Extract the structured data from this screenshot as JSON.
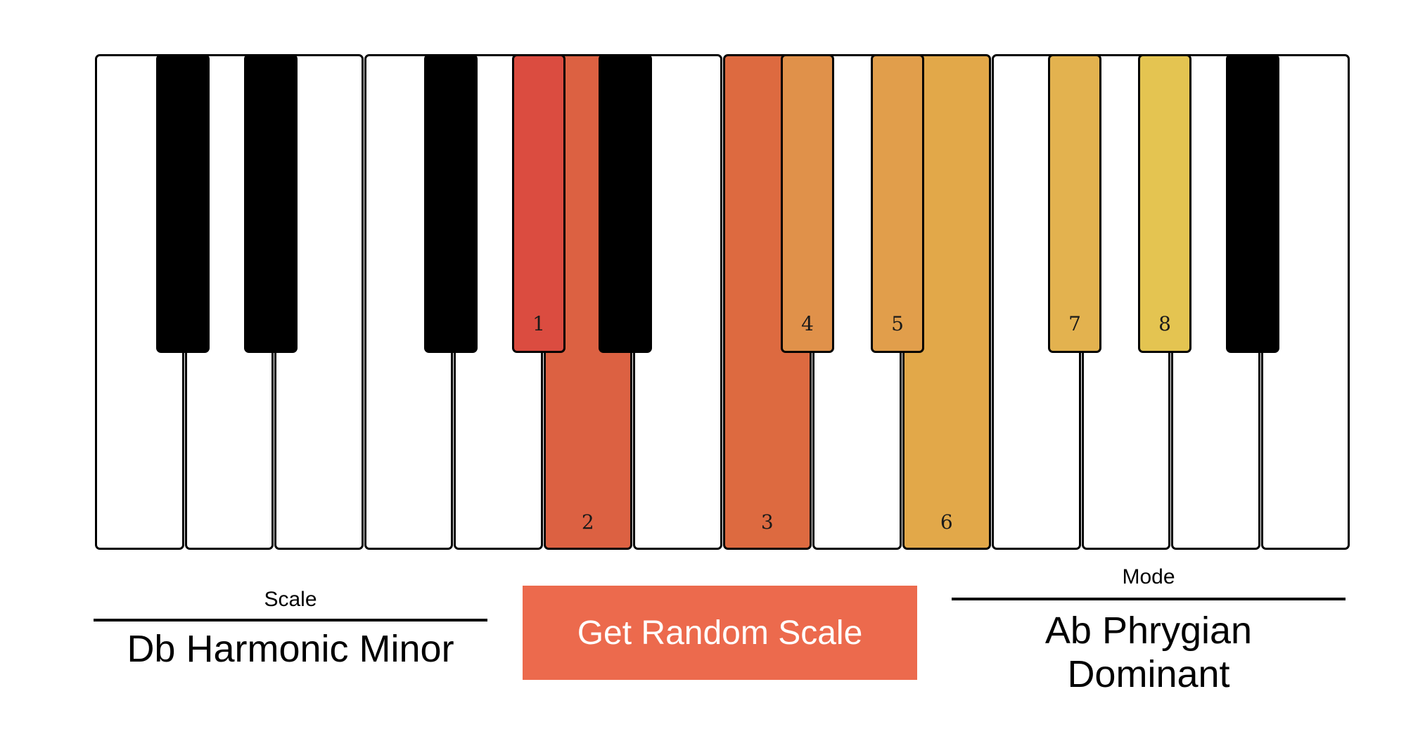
{
  "keyboard": {
    "white_keys": [
      {
        "label": "",
        "color": null
      },
      {
        "label": "",
        "color": null
      },
      {
        "label": "",
        "color": null
      },
      {
        "label": "",
        "color": null
      },
      {
        "label": "",
        "color": null
      },
      {
        "label": "2",
        "color": "#dc6142"
      },
      {
        "label": "",
        "color": null
      },
      {
        "label": "3",
        "color": "#dd6a40"
      },
      {
        "label": "",
        "color": null
      },
      {
        "label": "6",
        "color": "#e2a849"
      },
      {
        "label": "",
        "color": null
      },
      {
        "label": "",
        "color": null
      },
      {
        "label": "",
        "color": null
      },
      {
        "label": "",
        "color": null
      }
    ],
    "black_keys": [
      {
        "label": "",
        "color": null
      },
      {
        "label": "",
        "color": null
      },
      {
        "label": "",
        "color": null
      },
      {
        "label": "1",
        "color": "#db4c40"
      },
      {
        "label": "",
        "color": null
      },
      {
        "label": "4",
        "color": "#e0914a"
      },
      {
        "label": "5",
        "color": "#e19e4b"
      },
      {
        "label": "7",
        "color": "#e3b24f"
      },
      {
        "label": "8",
        "color": "#e4c451"
      },
      {
        "label": "",
        "color": null
      }
    ]
  },
  "scale": {
    "caption": "Scale",
    "value": "Db Harmonic Minor"
  },
  "random_button": {
    "label": "Get Random Scale",
    "color": "#ec6a4d"
  },
  "mode": {
    "caption": "Mode",
    "value_line1": "Ab Phrygian",
    "value_line2": "Dominant"
  }
}
